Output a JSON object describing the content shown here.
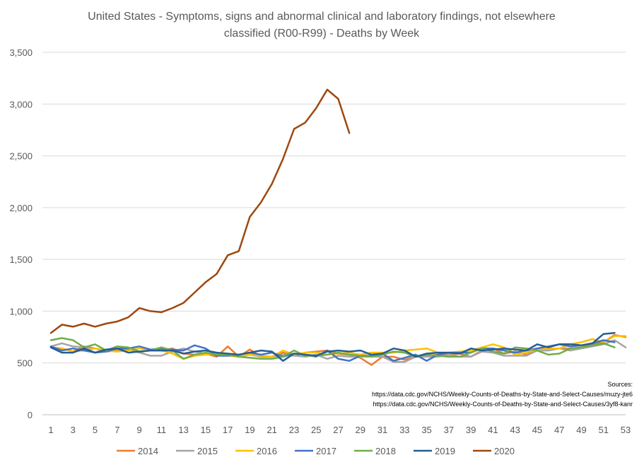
{
  "chart_data": {
    "type": "line",
    "title_lines": [
      "United States - Symptoms, signs and abnormal clinical and laboratory findings, not elsewhere",
      "classified (R00-R99) - Deaths by Week"
    ],
    "xlabel": "",
    "ylabel": "",
    "ylim": [
      0,
      3500
    ],
    "xlim": [
      1,
      53
    ],
    "y_ticks": [
      0,
      500,
      1000,
      1500,
      2000,
      2500,
      3000,
      3500
    ],
    "y_tick_labels": [
      "0",
      "500",
      "1,000",
      "1,500",
      "2,000",
      "2,500",
      "3,000",
      "3,500"
    ],
    "x_ticks": [
      1,
      3,
      5,
      7,
      9,
      11,
      13,
      15,
      17,
      19,
      21,
      23,
      25,
      27,
      29,
      31,
      33,
      35,
      37,
      39,
      41,
      43,
      45,
      47,
      49,
      51,
      53
    ],
    "x_tick_labels": [
      "1",
      "3",
      "5",
      "7",
      "9",
      "11",
      "13",
      "15",
      "17",
      "19",
      "21",
      "23",
      "25",
      "27",
      "29",
      "31",
      "33",
      "35",
      "37",
      "39",
      "41",
      "43",
      "45",
      "47",
      "49",
      "51",
      "53"
    ],
    "grid": "horizontal",
    "legend_position": "bottom",
    "sources": [
      "Sources:",
      "https://data.cdc.gov/NCHS/Weekly-Counts-of-Deaths-by-State-and-Select-Causes/muzy-jte6",
      "https://data.cdc.gov/NCHS/Weekly-Counts-of-Deaths-by-State-and-Select-Causes/3yf8-kanr"
    ],
    "series": [
      {
        "name": "2014",
        "color": "#ED7D31",
        "x_start": 1,
        "values": [
          650,
          640,
          610,
          660,
          640,
          610,
          620,
          640,
          600,
          630,
          620,
          640,
          590,
          580,
          590,
          560,
          660,
          560,
          630,
          560,
          560,
          600,
          570,
          600,
          610,
          620,
          590,
          580,
          550,
          480,
          560,
          560,
          530,
          560,
          570,
          580,
          580,
          590,
          560,
          620,
          640,
          590,
          610,
          580,
          620,
          640,
          640,
          640,
          650,
          680,
          700,
          770,
          750
        ]
      },
      {
        "name": "2015",
        "color": "#A5A5A5",
        "x_start": 1,
        "values": [
          660,
          690,
          660,
          650,
          640,
          620,
          610,
          630,
          600,
          570,
          570,
          610,
          640,
          610,
          590,
          590,
          580,
          560,
          580,
          560,
          560,
          580,
          570,
          560,
          580,
          540,
          570,
          560,
          560,
          560,
          560,
          510,
          510,
          560,
          560,
          560,
          580,
          560,
          560,
          610,
          600,
          570,
          570,
          570,
          620,
          620,
          640,
          620,
          640,
          660,
          680,
          720,
          650
        ]
      },
      {
        "name": "2016",
        "color": "#FFC000",
        "x_start": 1,
        "values": [
          650,
          640,
          610,
          620,
          640,
          620,
          610,
          620,
          640,
          620,
          620,
          590,
          540,
          570,
          580,
          590,
          570,
          560,
          580,
          570,
          560,
          620,
          580,
          600,
          600,
          580,
          590,
          600,
          580,
          600,
          600,
          600,
          620,
          630,
          640,
          600,
          600,
          610,
          620,
          650,
          680,
          650,
          580,
          600,
          630,
          640,
          640,
          680,
          700,
          730,
          700,
          760,
          760
        ]
      },
      {
        "name": "2017",
        "color": "#4472C4",
        "x_start": 1,
        "values": [
          660,
          620,
          640,
          620,
          600,
          610,
          640,
          640,
          660,
          630,
          640,
          630,
          620,
          670,
          640,
          570,
          570,
          580,
          600,
          580,
          600,
          560,
          590,
          580,
          560,
          620,
          540,
          520,
          570,
          570,
          590,
          520,
          550,
          580,
          520,
          580,
          600,
          600,
          600,
          640,
          640,
          620,
          600,
          620,
          640,
          660,
          680,
          660,
          670,
          690,
          720,
          700
        ]
      },
      {
        "name": "2018",
        "color": "#70AD47",
        "x_start": 1,
        "values": [
          720,
          740,
          720,
          650,
          680,
          620,
          660,
          650,
          610,
          620,
          650,
          620,
          540,
          580,
          600,
          580,
          580,
          560,
          550,
          540,
          540,
          560,
          620,
          570,
          570,
          580,
          600,
          580,
          570,
          560,
          580,
          610,
          600,
          560,
          580,
          570,
          560,
          560,
          600,
          640,
          610,
          590,
          650,
          640,
          620,
          580,
          590,
          640,
          650,
          670,
          690,
          650
        ]
      },
      {
        "name": "2019",
        "color": "#255E91",
        "x_start": 1,
        "values": [
          650,
          600,
          600,
          640,
          600,
          630,
          640,
          600,
          610,
          620,
          620,
          620,
          590,
          610,
          620,
          600,
          590,
          580,
          600,
          620,
          610,
          520,
          590,
          580,
          570,
          610,
          620,
          610,
          620,
          580,
          590,
          640,
          620,
          560,
          590,
          600,
          600,
          590,
          640,
          620,
          630,
          640,
          630,
          620,
          680,
          650,
          680,
          680,
          670,
          690,
          780,
          790
        ]
      },
      {
        "name": "2020",
        "color": "#9E480E",
        "x_start": 1,
        "values": [
          790,
          870,
          850,
          880,
          850,
          880,
          900,
          940,
          1030,
          1000,
          990,
          1030,
          1080,
          1180,
          1280,
          1360,
          1540,
          1580,
          1910,
          2050,
          2230,
          2470,
          2760,
          2820,
          2960,
          3140,
          3050,
          2720
        ]
      }
    ]
  }
}
